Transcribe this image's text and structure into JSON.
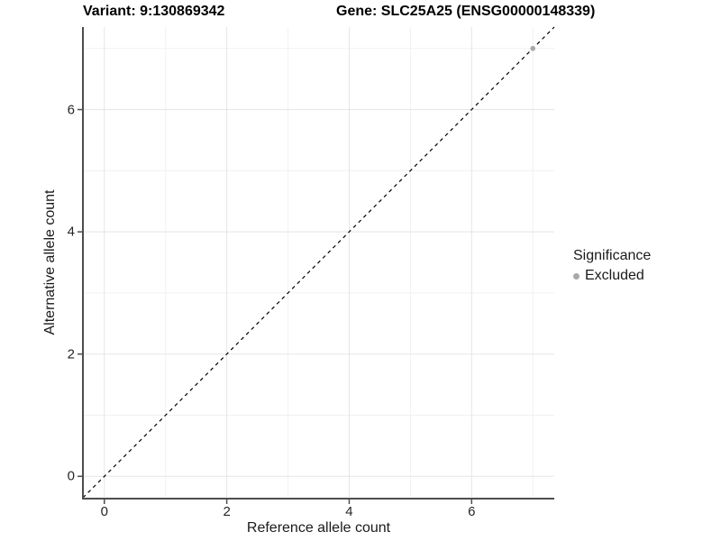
{
  "chart_data": {
    "type": "scatter",
    "title_left": "Variant: 9:130869342",
    "title_right": "Gene: SLC25A25 (ENSG00000148339)",
    "xlabel": "Reference allele count",
    "ylabel": "Alternative allele count",
    "xlim": [
      -0.35,
      7.35
    ],
    "ylim": [
      -0.35,
      7.35
    ],
    "xticks": {
      "values": [
        0,
        2,
        4,
        6
      ],
      "labels": [
        "0",
        "2",
        "4",
        "6"
      ]
    },
    "yticks": {
      "values": [
        0,
        2,
        4,
        6
      ],
      "labels": [
        "0",
        "2",
        "4",
        "6"
      ]
    },
    "minor_gridlines": [
      1,
      3,
      5,
      7
    ],
    "grid": "major+minor",
    "identity_line": {
      "style": "dashed",
      "from": [
        -0.35,
        -0.35
      ],
      "to": [
        7.35,
        7.35
      ],
      "color": "#000000"
    },
    "series": [
      {
        "name": "Excluded",
        "color": "#a9a9a9",
        "points": [
          [
            7,
            7
          ]
        ]
      }
    ],
    "legend": {
      "title": "Significance",
      "position": "right",
      "items": [
        {
          "label": "Excluded",
          "color": "#a9a9a9"
        }
      ]
    },
    "colors": {
      "panel_background": "#ffffff",
      "grid_major": "#e5e5e5",
      "grid_minor": "#f1f1f1",
      "axis_line": "#4d4d4d",
      "tick_mark": "#4d4d4d",
      "text": "#1a1a1a"
    }
  }
}
